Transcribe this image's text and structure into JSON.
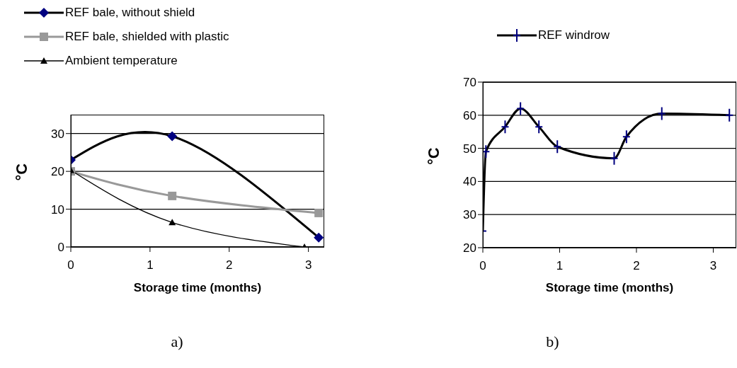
{
  "chart_data": [
    {
      "type": "line",
      "xlabel": "Storage time (months)",
      "ylabel": "°C",
      "annotations": [
        "a)"
      ],
      "xlim": [
        0,
        3.2
      ],
      "xticks": [
        0,
        1,
        2,
        3
      ],
      "ylim": [
        0,
        35
      ],
      "yticks": [
        0,
        10,
        20,
        30
      ],
      "grid": "y",
      "legend": "top left",
      "series": [
        {
          "name": "REF bale, without shield",
          "color": "#000000",
          "marker": "diamond",
          "x": [
            0,
            1.28,
            3.13
          ],
          "values": [
            23,
            29.3,
            2.5
          ]
        },
        {
          "name": "REF bale, shielded with plastic",
          "color": "#999999",
          "marker": "square",
          "x": [
            0,
            1.28,
            3.13
          ],
          "values": [
            20,
            13.5,
            9
          ]
        },
        {
          "name": "Ambient temperature",
          "color": "#000000",
          "marker": "triangle",
          "x": [
            0,
            1.28,
            2.95
          ],
          "values": [
            20.3,
            6.5,
            0
          ]
        }
      ]
    },
    {
      "type": "line",
      "xlabel": "Storage time (months)",
      "ylabel": "°C",
      "annotations": [
        "b)"
      ],
      "xlim": [
        0,
        3.3
      ],
      "xticks": [
        0,
        1,
        2,
        3
      ],
      "ylim": [
        20,
        70
      ],
      "yticks": [
        20,
        30,
        40,
        50,
        60,
        70
      ],
      "grid": "y",
      "legend": "top",
      "series": [
        {
          "name": "REF windrow",
          "color": "#000000",
          "marker": "cross",
          "x": [
            0,
            0.04,
            0.29,
            0.49,
            0.73,
            0.97,
            1.71,
            1.87,
            2.33,
            3.21
          ],
          "values": [
            25,
            49,
            56.5,
            62,
            56.5,
            50.5,
            47,
            53.5,
            60.5,
            60
          ]
        }
      ]
    }
  ]
}
